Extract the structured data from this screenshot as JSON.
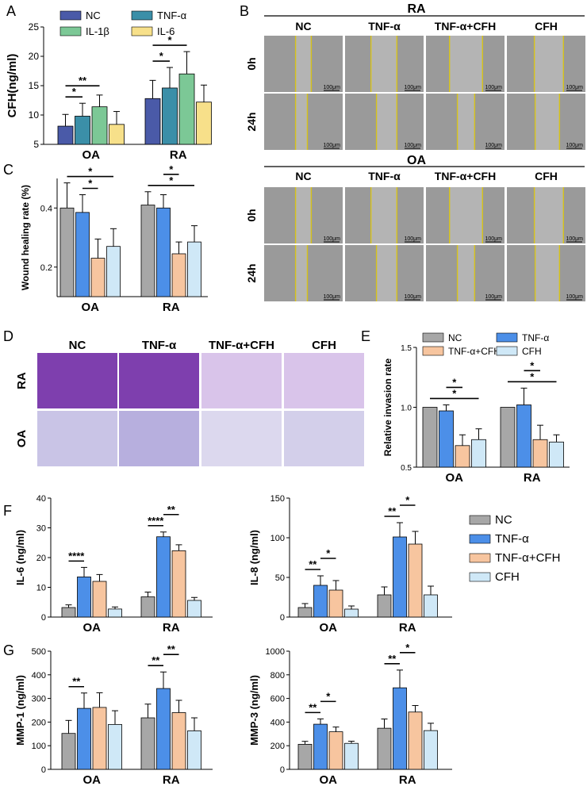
{
  "figure": {
    "colors": {
      "A_NC": "#4a5aa8",
      "A_TNF": "#3b8fa8",
      "A_IL1b": "#7cc896",
      "A_IL6": "#f7e08a",
      "NC": "#a7a7a7",
      "TNF": "#4c8fe8",
      "TNFCFH": "#f7c59f",
      "CFH": "#cfe8f7",
      "micro_bg": "#9a9a9a",
      "wound_line": "#d6c21a",
      "stain_dense": "#7e3fae",
      "stain_light": "#d9c4ea"
    }
  },
  "panels": {
    "A": {
      "letter": "A",
      "chart_data": {
        "type": "bar",
        "title": "",
        "ylabel": "CFH(ng/ml)",
        "ylim": [
          5,
          25
        ],
        "yticks": [
          "5",
          "10",
          "15",
          "20",
          "25"
        ],
        "categories": [
          "OA",
          "RA"
        ],
        "legend": [
          "NC",
          "TNF-α",
          "IL-1β",
          "IL-6"
        ],
        "series": [
          {
            "name": "NC",
            "values": [
              8.1,
              12.8
            ],
            "errors": [
              2.0,
              3.1
            ]
          },
          {
            "name": "TNF-α",
            "values": [
              9.8,
              14.6
            ],
            "errors": [
              2.2,
              3.5
            ]
          },
          {
            "name": "IL-1β",
            "values": [
              11.4,
              17.0
            ],
            "errors": [
              2.0,
              3.8
            ]
          },
          {
            "name": "IL-6",
            "values": [
              8.4,
              12.2
            ],
            "errors": [
              2.2,
              2.9
            ]
          }
        ],
        "significance": [
          {
            "group": 0,
            "from": 0,
            "to": 1,
            "label": "*"
          },
          {
            "group": 0,
            "from": 0,
            "to": 2,
            "label": "**"
          },
          {
            "group": 1,
            "from": 0,
            "to": 1,
            "label": "*"
          },
          {
            "group": 1,
            "from": 0,
            "to": 2,
            "label": "*"
          }
        ]
      }
    },
    "C": {
      "letter": "C",
      "chart_data": {
        "type": "bar",
        "ylabel": "Wound healing rate (%)",
        "ylim": [
          0.1,
          0.5
        ],
        "yticks": [
          "0.2",
          "0.4"
        ],
        "categories": [
          "OA",
          "RA"
        ],
        "series": [
          {
            "name": "NC",
            "values": [
              0.4,
              0.41
            ],
            "errors": [
              0.085,
              0.045
            ]
          },
          {
            "name": "TNF-α",
            "values": [
              0.385,
              0.4
            ],
            "errors": [
              0.06,
              0.045
            ]
          },
          {
            "name": "TNF-α+CFH",
            "values": [
              0.23,
              0.245
            ],
            "errors": [
              0.065,
              0.04
            ]
          },
          {
            "name": "CFH",
            "values": [
              0.27,
              0.285
            ],
            "errors": [
              0.06,
              0.055
            ]
          }
        ],
        "significance": [
          {
            "group": 0,
            "from": 0,
            "to": 3,
            "label": "*"
          },
          {
            "group": 0,
            "from": 1,
            "to": 2,
            "label": "*"
          },
          {
            "group": 1,
            "from": 0,
            "to": 3,
            "label": "*"
          },
          {
            "group": 1,
            "from": 1,
            "to": 2,
            "label": "*"
          }
        ]
      }
    },
    "E": {
      "letter": "E",
      "chart_data": {
        "type": "bar",
        "ylabel": "Relative invasion rate",
        "ylim": [
          0.5,
          1.5
        ],
        "yticks": [
          "0.5",
          "1.0",
          "1.5"
        ],
        "categories": [
          "OA",
          "RA"
        ],
        "legend": [
          "NC",
          "TNF-α",
          "TNF-α+CFH",
          "CFH"
        ],
        "series": [
          {
            "name": "NC",
            "values": [
              1.0,
              1.0
            ],
            "errors": [
              0,
              0
            ]
          },
          {
            "name": "TNF-α",
            "values": [
              0.97,
              1.02
            ],
            "errors": [
              0.05,
              0.14
            ]
          },
          {
            "name": "TNF-α+CFH",
            "values": [
              0.68,
              0.73
            ],
            "errors": [
              0.09,
              0.12
            ]
          },
          {
            "name": "CFH",
            "values": [
              0.73,
              0.71
            ],
            "errors": [
              0.09,
              0.06
            ]
          }
        ],
        "significance": [
          {
            "group": 0,
            "from": 0,
            "to": 3,
            "label": "*"
          },
          {
            "group": 0,
            "from": 1,
            "to": 2,
            "label": "*"
          },
          {
            "group": 1,
            "from": 0,
            "to": 3,
            "label": "*"
          },
          {
            "group": 1,
            "from": 1,
            "to": 2,
            "label": "*"
          }
        ]
      }
    },
    "F1": {
      "letter": "F",
      "chart_data": {
        "type": "bar",
        "ylabel": "IL-6 (ng/ml)",
        "ylim": [
          0,
          40
        ],
        "yticks": [
          "0",
          "10",
          "20",
          "30",
          "40"
        ],
        "categories": [
          "OA",
          "RA"
        ],
        "series": [
          {
            "name": "NC",
            "values": [
              3.2,
              6.8
            ],
            "errors": [
              0.9,
              1.6
            ]
          },
          {
            "name": "TNF-α",
            "values": [
              13.5,
              27.0
            ],
            "errors": [
              3.2,
              1.6
            ]
          },
          {
            "name": "TNF-α+CFH",
            "values": [
              12.0,
              22.3
            ],
            "errors": [
              2.3,
              2.0
            ]
          },
          {
            "name": "CFH",
            "values": [
              2.7,
              5.6
            ],
            "errors": [
              0.7,
              1.0
            ]
          }
        ],
        "significance": [
          {
            "group": 0,
            "from": 0,
            "to": 1,
            "label": "****"
          },
          {
            "group": 1,
            "from": 0,
            "to": 1,
            "label": "****"
          },
          {
            "group": 1,
            "from": 1,
            "to": 2,
            "label": "**"
          }
        ]
      }
    },
    "F2": {
      "letter": "",
      "chart_data": {
        "type": "bar",
        "ylabel": "IL-8 (ng/ml)",
        "ylim": [
          0,
          150
        ],
        "yticks": [
          "0",
          "50",
          "100",
          "150"
        ],
        "categories": [
          "OA",
          "RA"
        ],
        "series": [
          {
            "name": "NC",
            "values": [
              12,
              28
            ],
            "errors": [
              5,
              10
            ]
          },
          {
            "name": "TNF-α",
            "values": [
              40,
              101
            ],
            "errors": [
              12,
              18
            ]
          },
          {
            "name": "TNF-α+CFH",
            "values": [
              34,
              92
            ],
            "errors": [
              12,
              16
            ]
          },
          {
            "name": "CFH",
            "values": [
              10,
              28
            ],
            "errors": [
              4,
              11
            ]
          }
        ],
        "significance": [
          {
            "group": 0,
            "from": 0,
            "to": 1,
            "label": "**"
          },
          {
            "group": 0,
            "from": 1,
            "to": 2,
            "label": "*"
          },
          {
            "group": 1,
            "from": 0,
            "to": 1,
            "label": "**"
          },
          {
            "group": 1,
            "from": 1,
            "to": 2,
            "label": "*"
          }
        ]
      }
    },
    "G1": {
      "letter": "G",
      "chart_data": {
        "type": "bar",
        "ylabel": "MMP-1 (ng/ml)",
        "ylim": [
          0,
          500
        ],
        "yticks": [
          "0",
          "100",
          "200",
          "300",
          "400",
          "500"
        ],
        "categories": [
          "OA",
          "RA"
        ],
        "series": [
          {
            "name": "NC",
            "values": [
              152,
              218
            ],
            "errors": [
              55,
              58
            ]
          },
          {
            "name": "TNF-α",
            "values": [
              258,
              342
            ],
            "errors": [
              65,
              70
            ]
          },
          {
            "name": "TNF-α+CFH",
            "values": [
              262,
              240
            ],
            "errors": [
              62,
              52
            ]
          },
          {
            "name": "CFH",
            "values": [
              190,
              163
            ],
            "errors": [
              58,
              55
            ]
          }
        ],
        "significance": [
          {
            "group": 0,
            "from": 0,
            "to": 1,
            "label": "**"
          },
          {
            "group": 1,
            "from": 0,
            "to": 1,
            "label": "**"
          },
          {
            "group": 1,
            "from": 1,
            "to": 2,
            "label": "**"
          }
        ]
      }
    },
    "G2": {
      "letter": "",
      "chart_data": {
        "type": "bar",
        "ylabel": "MMP-3 (ng/ml)",
        "ylim": [
          0,
          1000
        ],
        "yticks": [
          "0",
          "200",
          "400",
          "600",
          "800",
          "1000"
        ],
        "categories": [
          "OA",
          "RA"
        ],
        "series": [
          {
            "name": "NC",
            "values": [
              212,
              348
            ],
            "errors": [
              25,
              78
            ]
          },
          {
            "name": "TNF-α",
            "values": [
              382,
              690
            ],
            "errors": [
              45,
              150
            ]
          },
          {
            "name": "TNF-α+CFH",
            "values": [
              318,
              485
            ],
            "errors": [
              40,
              55
            ]
          },
          {
            "name": "CFH",
            "values": [
              220,
              328
            ],
            "errors": [
              18,
              62
            ]
          }
        ],
        "significance": [
          {
            "group": 0,
            "from": 0,
            "to": 1,
            "label": "**"
          },
          {
            "group": 0,
            "from": 1,
            "to": 2,
            "label": "*"
          },
          {
            "group": 1,
            "from": 0,
            "to": 1,
            "label": "**"
          },
          {
            "group": 1,
            "from": 1,
            "to": 2,
            "label": "*"
          }
        ]
      }
    }
  },
  "legend_FG": [
    "NC",
    "TNF-α",
    "TNF-α+CFH",
    "CFH"
  ],
  "panel_B": {
    "letter": "B",
    "sections": [
      {
        "title": "RA",
        "columns": [
          "NC",
          "TNF-α",
          "TNF-α+CFH",
          "CFH"
        ],
        "rows": [
          "0h",
          "24h"
        ],
        "scale": "100μm"
      },
      {
        "title": "OA",
        "columns": [
          "NC",
          "TNF-α",
          "TNF-α+CFH",
          "CFH"
        ],
        "rows": [
          "0h",
          "24h"
        ],
        "scale": "100μm"
      }
    ]
  },
  "panel_D": {
    "letter": "D",
    "columns": [
      "NC",
      "TNF-α",
      "TNF-α+CFH",
      "CFH"
    ],
    "rows": [
      "RA",
      "OA"
    ]
  }
}
